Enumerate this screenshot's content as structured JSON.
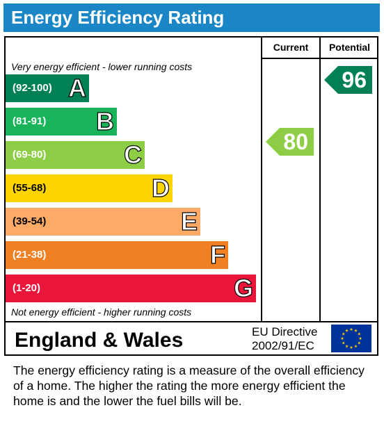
{
  "title": "Energy Efficiency Rating",
  "columns": {
    "current": "Current",
    "potential": "Potential"
  },
  "top_note": "Very energy efficient - lower running costs",
  "bottom_note": "Not energy efficient - higher running costs",
  "footer": {
    "country": "England & Wales",
    "directive_line1": "EU Directive",
    "directive_line2": "2002/91/EC"
  },
  "description": "The energy efficiency rating is a measure of the overall efficiency of a home.  The higher the rating the more energy efficient the home is and the lower the fuel bills will be.",
  "colors": {
    "title_bar": "#1a86c6",
    "flag": "#003399",
    "flag_stars": "#ffcc00"
  },
  "chart_data": {
    "type": "bar",
    "bands": [
      {
        "range": "(92-100)",
        "letter": "A",
        "color": "#008054"
      },
      {
        "range": "(81-91)",
        "letter": "B",
        "color": "#19b459"
      },
      {
        "range": "(69-80)",
        "letter": "C",
        "color": "#8dce46"
      },
      {
        "range": "(55-68)",
        "letter": "D",
        "color": "#ffd500"
      },
      {
        "range": "(39-54)",
        "letter": "E",
        "color": "#fcaa65"
      },
      {
        "range": "(21-38)",
        "letter": "F",
        "color": "#ef8023"
      },
      {
        "range": "(1-20)",
        "letter": "G",
        "color": "#e9153b"
      }
    ],
    "current": {
      "value": "80",
      "band": "C",
      "color": "#8dce46"
    },
    "potential": {
      "value": "96",
      "band": "A",
      "color": "#008054"
    }
  }
}
